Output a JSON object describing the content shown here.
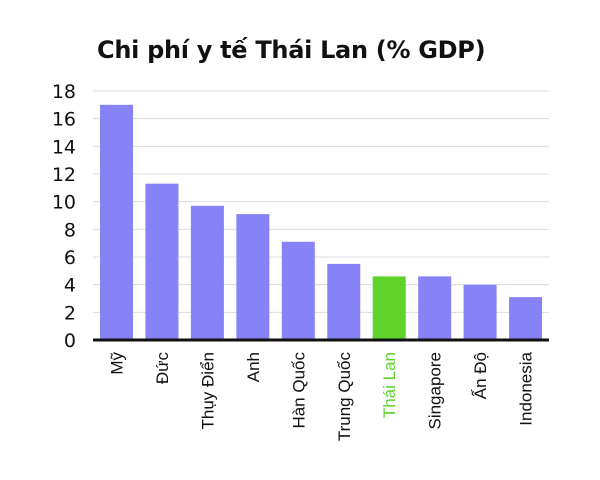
{
  "chart_data": {
    "type": "bar",
    "title": "Chi phí y tế Thái Lan (% GDP)",
    "xlabel": "",
    "ylabel": "",
    "ylim": [
      0,
      18
    ],
    "yticks": [
      "0",
      "2",
      "4",
      "6",
      "8",
      "10",
      "12",
      "14",
      "16",
      "18"
    ],
    "grid": true,
    "categories": [
      "Mỹ",
      "Đức",
      "Thụy Điển",
      "Anh",
      "Hàn Quốc",
      "Trung Quốc",
      "Thái Lan",
      "Singapore",
      "Ấn Độ",
      "Indonesia"
    ],
    "values": [
      17.0,
      11.3,
      9.7,
      9.1,
      7.1,
      5.5,
      4.6,
      4.6,
      4.0,
      3.1
    ],
    "highlight_index": 6,
    "colors": {
      "bar": "#8782f5",
      "highlight": "#5fd22c",
      "grid": "#dcdce6",
      "axis": "#111111"
    }
  }
}
